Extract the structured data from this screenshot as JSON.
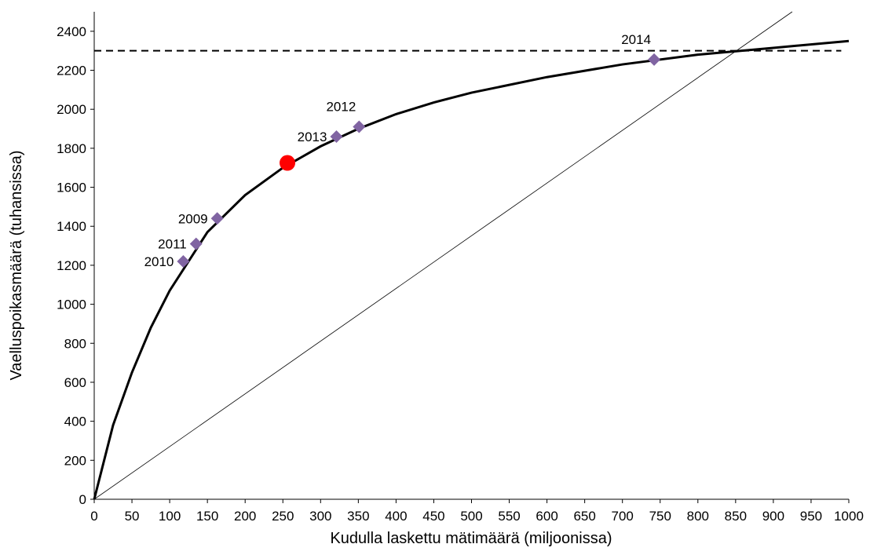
{
  "chart_data": {
    "type": "line",
    "x_label": "Kudulla laskettu mätimäärä (miljoonissa)",
    "y_label": "Vaelluspoikasmäärä (tuhansissa)",
    "xlim": [
      0,
      1000
    ],
    "ylim": [
      0,
      2500
    ],
    "xticks": [
      0,
      50,
      100,
      150,
      200,
      250,
      300,
      350,
      400,
      450,
      500,
      550,
      600,
      650,
      700,
      750,
      800,
      850,
      900,
      950,
      1000
    ],
    "yticks": [
      0,
      200,
      400,
      600,
      800,
      1000,
      1200,
      1400,
      1600,
      1800,
      2000,
      2200,
      2400
    ],
    "series": [
      {
        "color": "#000000",
        "line_width": 3,
        "x": [
          0,
          25,
          50,
          75,
          100,
          150,
          200,
          250,
          300,
          350,
          400,
          450,
          500,
          600,
          700,
          800,
          900,
          1000
        ],
        "values": [
          0,
          380,
          650,
          880,
          1070,
          1370,
          1560,
          1700,
          1810,
          1900,
          1975,
          2035,
          2085,
          2165,
          2230,
          2280,
          2315,
          2350
        ]
      },
      {
        "color": "#000000",
        "line_width": 0.8,
        "x": [
          0,
          925
        ],
        "values": [
          0,
          2500
        ]
      },
      {
        "color": "#000000",
        "line_width": 2,
        "dash": true,
        "x": [
          0,
          990
        ],
        "values": [
          2300,
          2300
        ]
      },
      {
        "color": "#8064a2",
        "marker": "diamond",
        "x": [
          118,
          135,
          163,
          321,
          351,
          742
        ],
        "values": [
          1220,
          1310,
          1440,
          1860,
          1910,
          2255
        ],
        "labels": [
          "2010",
          "2011",
          "2009",
          "2013",
          "2012",
          "2014"
        ]
      },
      {
        "color": "#ff0000",
        "marker": "circle",
        "x": [
          256
        ],
        "values": [
          1725
        ]
      }
    ]
  }
}
